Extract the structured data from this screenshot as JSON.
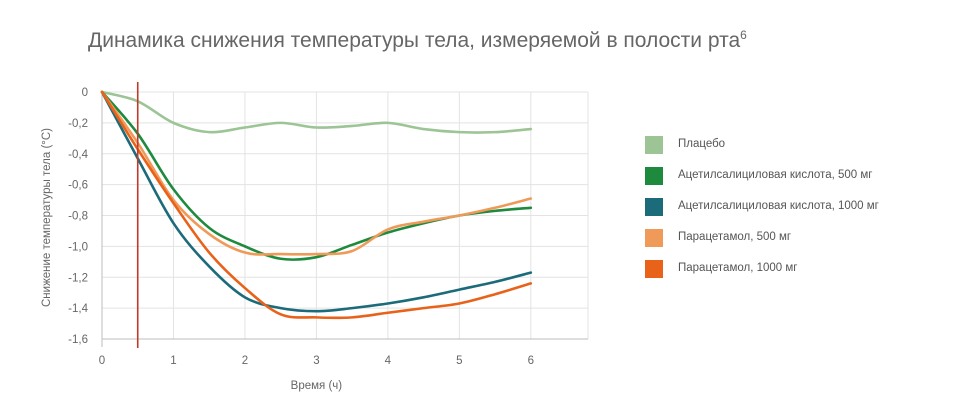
{
  "chart_data": {
    "type": "line",
    "title": "Динамика снижения температуры тела, измеряемой в полости рта",
    "title_superscript": "6",
    "xlabel": "Время (ч)",
    "ylabel": "Снижение температуры тела (°C)",
    "xlim": [
      0,
      6.8
    ],
    "ylim": [
      -1.6,
      0
    ],
    "xticks": [
      "0",
      "1",
      "2",
      "3",
      "4",
      "5",
      "6"
    ],
    "xtick_values": [
      0,
      1,
      2,
      3,
      4,
      5,
      6
    ],
    "yticks": [
      "0",
      "-0,2",
      "-0,4",
      "-0,6",
      "-0,8",
      "-1,0",
      "-1,2",
      "-1,4",
      "-1,6"
    ],
    "ytick_values": [
      0,
      -0.2,
      -0.4,
      -0.6,
      -0.8,
      -1.0,
      -1.2,
      -1.4,
      -1.6
    ],
    "grid": true,
    "reference_line_x": 0.5,
    "reference_line_color": "#c0392b",
    "legend_position": "right",
    "series": [
      {
        "name": "Плацебо",
        "color": "#9cc495",
        "x": [
          0,
          0.5,
          1,
          1.5,
          2,
          2.5,
          3,
          3.5,
          4,
          4.5,
          5,
          5.5,
          6
        ],
        "y": [
          0,
          -0.06,
          -0.2,
          -0.26,
          -0.23,
          -0.2,
          -0.23,
          -0.22,
          -0.2,
          -0.24,
          -0.26,
          -0.26,
          -0.24
        ]
      },
      {
        "name": "Ацетилсалициловая кислота, 500 мг",
        "color": "#1e8a3e",
        "x": [
          0,
          0.5,
          1,
          1.5,
          2,
          2.5,
          3,
          3.5,
          4,
          4.5,
          5,
          5.5,
          6
        ],
        "y": [
          0,
          -0.27,
          -0.63,
          -0.88,
          -1.0,
          -1.08,
          -1.07,
          -0.99,
          -0.91,
          -0.85,
          -0.8,
          -0.77,
          -0.75
        ]
      },
      {
        "name": "Ацетилсалициловая кислота, 1000 мг",
        "color": "#1b6b7a",
        "x": [
          0,
          0.5,
          1,
          1.5,
          2,
          2.5,
          3,
          3.5,
          4,
          4.5,
          5,
          5.5,
          6
        ],
        "y": [
          0,
          -0.43,
          -0.85,
          -1.13,
          -1.33,
          -1.4,
          -1.42,
          -1.4,
          -1.37,
          -1.33,
          -1.28,
          -1.23,
          -1.17
        ]
      },
      {
        "name": "Парацетамол, 500 мг",
        "color": "#f09a5a",
        "x": [
          0,
          0.5,
          1,
          1.5,
          2,
          2.5,
          3,
          3.5,
          4,
          4.5,
          5,
          5.5,
          6
        ],
        "y": [
          0,
          -0.33,
          -0.7,
          -0.92,
          -1.04,
          -1.05,
          -1.05,
          -1.03,
          -0.89,
          -0.84,
          -0.8,
          -0.75,
          -0.69
        ]
      },
      {
        "name": "Парацетамол, 1000 мг",
        "color": "#e8621a",
        "x": [
          0,
          0.5,
          1,
          1.5,
          2,
          2.5,
          3,
          3.5,
          4,
          4.5,
          5,
          5.5,
          6
        ],
        "y": [
          0,
          -0.37,
          -0.72,
          -1.04,
          -1.27,
          -1.44,
          -1.46,
          -1.46,
          -1.43,
          -1.4,
          -1.37,
          -1.31,
          -1.24
        ]
      }
    ]
  }
}
